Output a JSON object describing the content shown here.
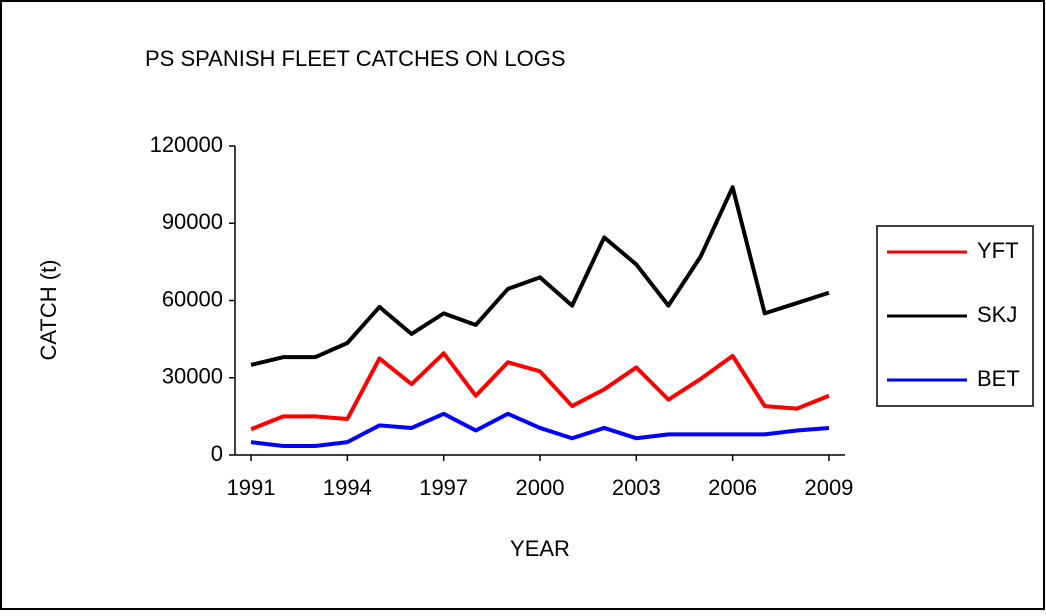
{
  "chart_data": {
    "type": "line",
    "title": "PS SPANISH FLEET CATCHES  ON LOGS",
    "x_label": "YEAR",
    "y_label": "CATCH (t)",
    "x": [
      1991,
      1992,
      1993,
      1994,
      1995,
      1996,
      1997,
      1998,
      1999,
      2000,
      2001,
      2002,
      2003,
      2004,
      2005,
      2006,
      2007,
      2008,
      2009
    ],
    "series": [
      {
        "name": "YFT",
        "color": "#ff0000",
        "values": [
          10000,
          15000,
          15000,
          14000,
          37500,
          27500,
          39500,
          23000,
          36000,
          32500,
          19000,
          25500,
          34000,
          21500,
          29500,
          38500,
          19000,
          18000,
          23000
        ]
      },
      {
        "name": "SKJ",
        "color": "#000000",
        "values": [
          35000,
          38000,
          38000,
          43500,
          57500,
          47000,
          55000,
          50500,
          64500,
          69000,
          58000,
          84500,
          74000,
          58000,
          77000,
          104000,
          55000,
          59000,
          63000
        ]
      },
      {
        "name": "BET",
        "color": "#0000ff",
        "values": [
          5000,
          3500,
          3500,
          5000,
          11500,
          10500,
          16000,
          9500,
          16000,
          10500,
          6500,
          10500,
          6500,
          8000,
          8000,
          8000,
          8000,
          9500,
          10500
        ]
      }
    ],
    "xlim": [
      1990.5,
      2009.5
    ],
    "xticks": [
      1991,
      1994,
      1997,
      2000,
      2003,
      2006,
      2009
    ],
    "ylim": [
      0,
      120000
    ],
    "yticks": [
      0,
      30000,
      60000,
      90000,
      120000
    ],
    "legend": "right"
  }
}
